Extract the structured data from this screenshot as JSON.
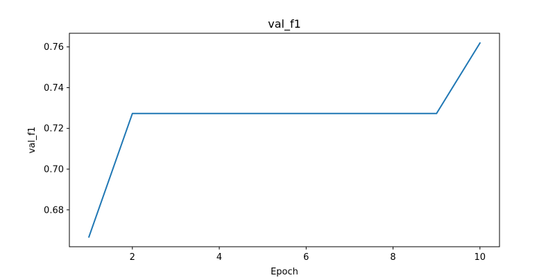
{
  "chart_data": {
    "type": "line",
    "title": "val_f1",
    "xlabel": "Epoch",
    "ylabel": "val_f1",
    "x": [
      1,
      2,
      3,
      4,
      5,
      6,
      7,
      8,
      9,
      10
    ],
    "series": [
      {
        "values": [
          0.6667,
          0.7273,
          0.7273,
          0.7273,
          0.7273,
          0.7273,
          0.7273,
          0.7273,
          0.7273,
          0.7619
        ],
        "color": "#1f77b4"
      }
    ],
    "xlim": [
      0.55,
      10.45
    ],
    "ylim": [
      0.6619,
      0.7667
    ],
    "xticks": [
      2,
      4,
      6,
      8,
      10
    ],
    "yticks": [
      0.68,
      0.7,
      0.72,
      0.74,
      0.76
    ],
    "xtick_labels": [
      "2",
      "4",
      "6",
      "8",
      "10"
    ],
    "ytick_labels": [
      "0.68",
      "0.70",
      "0.72",
      "0.74",
      "0.76"
    ],
    "grid": false,
    "legend": false
  }
}
